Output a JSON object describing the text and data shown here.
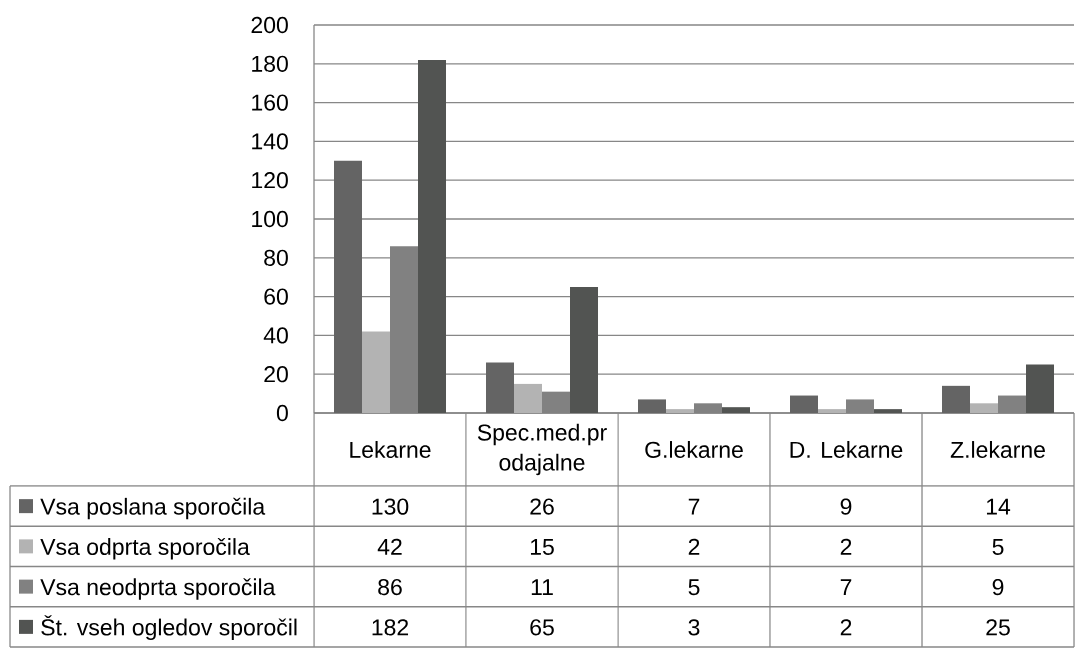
{
  "chart_data": {
    "type": "bar",
    "categories": [
      "Lekarne",
      "Spec.med.prodajalne",
      "G.lekarne",
      "D. Lekarne",
      "Z.lekarne"
    ],
    "series": [
      {
        "name": "Vsa poslana sporočila",
        "color": "#646464",
        "values": [
          130,
          26,
          7,
          9,
          14
        ]
      },
      {
        "name": "Vsa odprta sporočila",
        "color": "#b3b3b3",
        "values": [
          42,
          15,
          2,
          2,
          5
        ]
      },
      {
        "name": "Vsa neodprta sporočila",
        "color": "#818181",
        "values": [
          86,
          11,
          5,
          7,
          9
        ]
      },
      {
        "name": "Št. vseh ogledov sporočil",
        "color": "#525452",
        "values": [
          182,
          65,
          3,
          2,
          25
        ]
      }
    ],
    "ylim": [
      0,
      200
    ],
    "yticks": [
      0,
      20,
      40,
      60,
      80,
      100,
      120,
      140,
      160,
      180,
      200
    ],
    "grid": "y",
    "legend": "bottom",
    "data_labels": true
  }
}
